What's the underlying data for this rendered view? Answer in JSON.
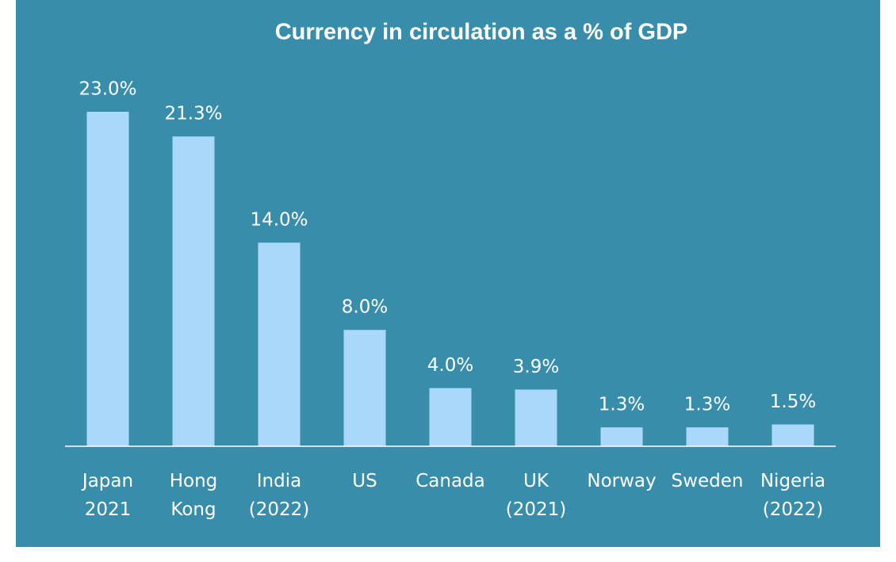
{
  "chart_data": {
    "type": "bar",
    "title": "Currency in circulation as a % of GDP",
    "categories": [
      "Japan\n2021",
      "Hong\nKong",
      "India\n(2022)",
      "US",
      "Canada",
      "UK\n(2021)",
      "Norway",
      "Sweden",
      "Nigeria\n(2022)"
    ],
    "values": [
      23.0,
      21.3,
      14.0,
      8.0,
      4.0,
      3.9,
      1.3,
      1.3,
      1.5
    ],
    "value_labels": [
      "23.0%",
      "21.3%",
      "14.0%",
      "8.0%",
      "4.0%",
      "3.9%",
      "1.3%",
      "1.3%",
      "1.5%"
    ],
    "color": "#a9d8fb",
    "grid": false
  }
}
